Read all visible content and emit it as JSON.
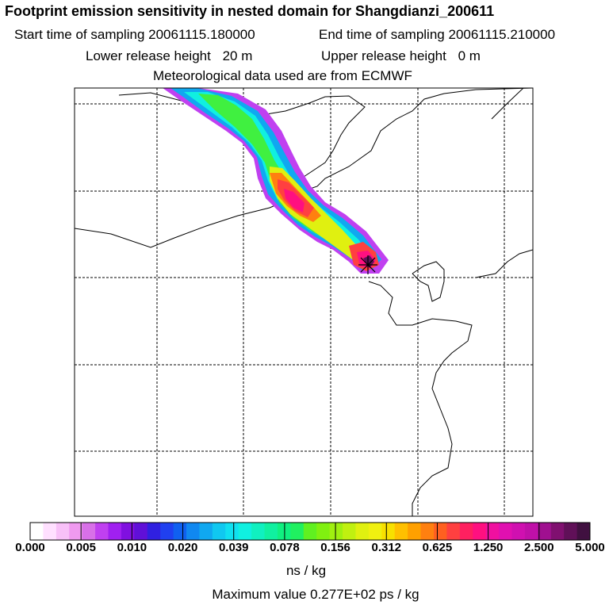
{
  "header": {
    "title": "Footprint emission sensitivity in nested domain for Shangdianzi_200611",
    "start_label": "Start time of sampling",
    "start_value": "20061115.180000",
    "end_label": "End time of sampling",
    "end_value": "20061115.210000",
    "lower_label": "Lower release height",
    "lower_value": "20 m",
    "upper_label": "Upper release height",
    "upper_value": "0 m",
    "met_source": "Meteorological data used are from ECMWF"
  },
  "colorbar": {
    "labels": [
      "0.000",
      "0.005",
      "0.010",
      "0.020",
      "0.039",
      "0.078",
      "0.156",
      "0.312",
      "0.625",
      "1.250",
      "2.500",
      "5.000"
    ],
    "colors": [
      "#ffffff",
      "#ffe0ff",
      "#f8c0f8",
      "#f09af0",
      "#d870e8",
      "#c040f0",
      "#a020f0",
      "#8010e0",
      "#6010d8",
      "#3020e0",
      "#2040f0",
      "#1060f0",
      "#1088f0",
      "#10a8f0",
      "#10c8f0",
      "#10e0f0",
      "#10f0e0",
      "#10f0c0",
      "#10f0a0",
      "#10f080",
      "#20f060",
      "#60f020",
      "#80f010",
      "#a0f010",
      "#c0f010",
      "#e0f010",
      "#f0f010",
      "#f8e000",
      "#ffc000",
      "#ffa000",
      "#ff8010",
      "#ff6020",
      "#ff4040",
      "#ff2060",
      "#ff1080",
      "#f010a0",
      "#e010b0",
      "#d010b0",
      "#c010a8",
      "#a01090",
      "#801070",
      "#601058",
      "#401040"
    ],
    "unit": "ns / kg"
  },
  "max_value": "Maximum value  0.277E+02 ps / kg",
  "plume_colors": {
    "outer": "#c040f0",
    "blue": "#10a8f0",
    "cyan": "#10f0e0",
    "green": "#40f040",
    "yellow": "#e0f010",
    "orange": "#ff8010",
    "red": "#ff4040",
    "magenta": "#ff1080",
    "dark": "#601058"
  },
  "receptor_marker": "receptor-star-icon"
}
